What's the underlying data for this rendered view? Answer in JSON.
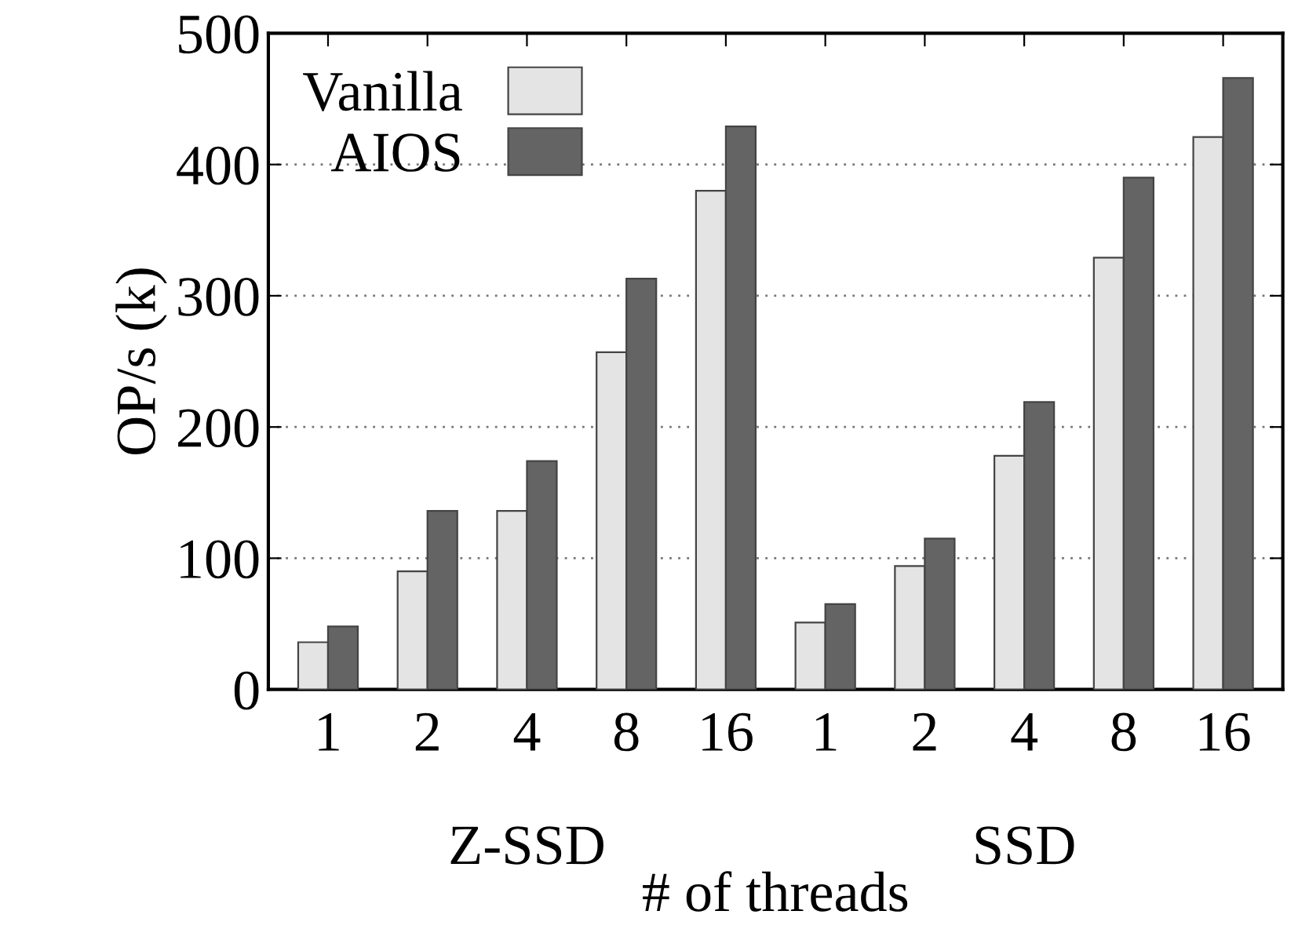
{
  "chart_data": {
    "type": "bar",
    "xlabel": "# of threads",
    "ylabel": "OP/s (k)",
    "categories": [
      "1",
      "2",
      "4",
      "8",
      "16",
      "1",
      "2",
      "4",
      "8",
      "16"
    ],
    "series": [
      {
        "name": "Vanilla",
        "color": "#e4e4e4",
        "values": [
          36,
          90,
          136,
          257,
          380,
          51,
          94,
          178,
          329,
          421
        ]
      },
      {
        "name": "AIOS",
        "color": "#646464",
        "values": [
          48,
          136,
          174,
          313,
          429,
          65,
          115,
          219,
          390,
          466
        ]
      }
    ],
    "annotations": [
      "Z-SSD",
      "SSD"
    ],
    "ylim": [
      0,
      500
    ],
    "yticks": [
      0,
      100,
      200,
      300,
      400,
      500
    ],
    "grid": "y",
    "legend": "top left"
  }
}
